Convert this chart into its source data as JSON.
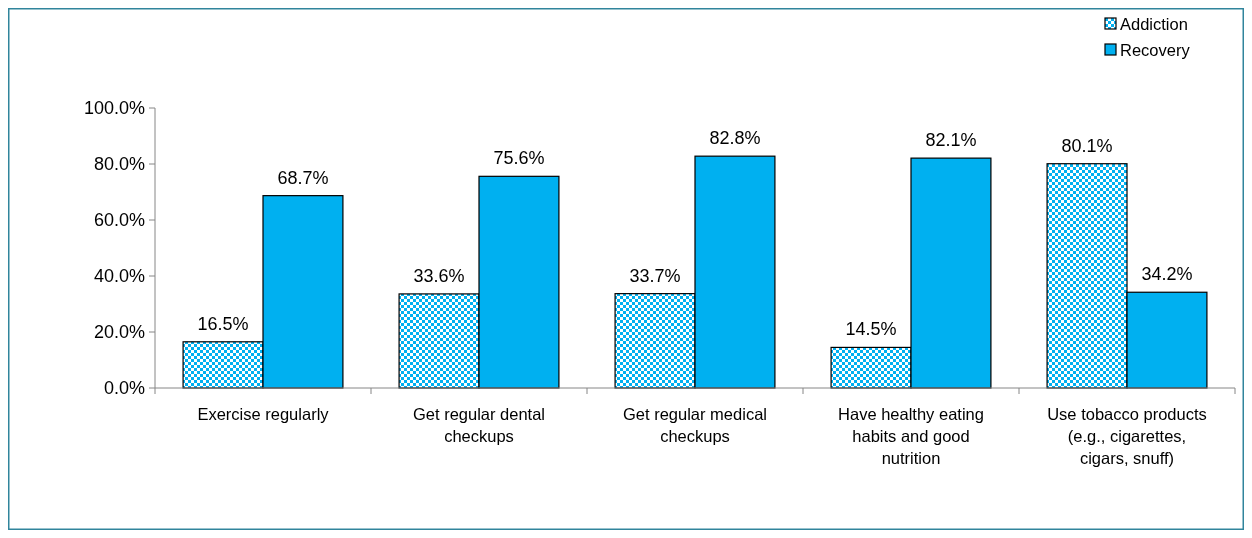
{
  "chart_data": {
    "type": "bar",
    "categories": [
      "Exercise regularly",
      "Get regular dental checkups",
      "Get regular medical checkups",
      "Have healthy eating habits and good nutrition",
      "Use tobacco products (e.g., cigarettes, cigars, snuff)"
    ],
    "series": [
      {
        "name": "Addiction",
        "color": "#00b0f0",
        "values": [
          16.5,
          33.6,
          33.7,
          14.5,
          80.1
        ],
        "value_labels": [
          "16.5%",
          "33.6%",
          "33.7%",
          "14.5%",
          "80.1%"
        ]
      },
      {
        "name": "Recovery",
        "color": "#00b0f0",
        "values": [
          68.7,
          75.6,
          82.8,
          82.1,
          34.2
        ],
        "value_labels": [
          "68.7%",
          "75.6%",
          "82.8%",
          "82.1%",
          "34.2%"
        ]
      }
    ],
    "ylim": [
      0,
      100
    ],
    "yticks": [
      {
        "value": 0,
        "label": "0.0%"
      },
      {
        "value": 20,
        "label": "20.0%"
      },
      {
        "value": 40,
        "label": "40.0%"
      },
      {
        "value": 60,
        "label": "60.0%"
      },
      {
        "value": 80,
        "label": "80.0%"
      },
      {
        "value": 100,
        "label": "100.0%"
      }
    ],
    "grid": false,
    "legend": "top right"
  }
}
